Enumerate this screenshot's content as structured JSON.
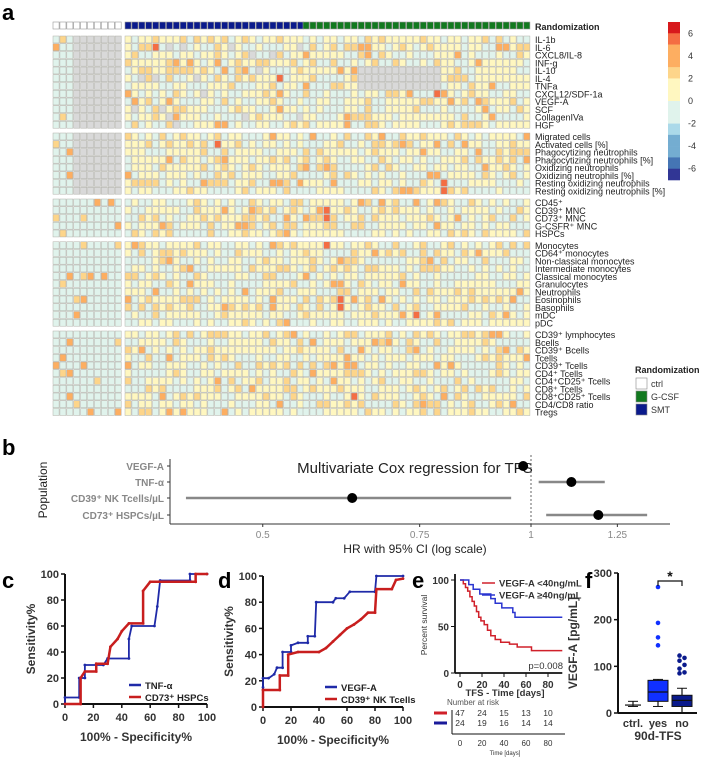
{
  "panels": {
    "a": "a",
    "b": "b",
    "c": "c",
    "d": "d",
    "e": "e",
    "f": "f"
  },
  "chart_data": [
    {
      "panel": "a",
      "type": "heatmap",
      "header_label": "Randomization",
      "column_groups": [
        {
          "name": "ctrl",
          "color": "#ffffff",
          "columns": 10
        },
        {
          "name": "SMT",
          "color": "#0a1a8c",
          "columns": 26
        },
        {
          "name": "G-CSF",
          "color": "#12791f",
          "columns": 33
        }
      ],
      "row_groups": [
        [
          "IL-1b",
          "IL-6",
          "CXCL8/IL-8",
          "INF-g",
          "IL-10",
          "IL-4",
          "TNFa",
          "CXCL12/SDF-1a",
          "VEGF-A",
          "SCF",
          "CollagenIVa",
          "HGF"
        ],
        [
          "Migrated cells",
          "Activated cells [%]",
          "Phagocytizing neutrophils",
          "Phagocytizing neutrophils [%]",
          "Oxidizing neutrophils",
          "Oxidizing neutrophils [%]",
          "Resting oxidizing neutrophils",
          "Resting oxidizing neutrophils [%]"
        ],
        [
          "CD45⁺",
          "CD39⁺ MNC",
          "CD73⁺ MNC",
          "G-CSFR⁺ MNC",
          "HSPCs"
        ],
        [
          "Monocytes",
          "CD64⁺ monocytes",
          "Non-classical monocytes",
          "Intermediate monocytes",
          "Classical monocytes",
          "Granulocytes",
          "Neutrophils",
          "Eosinophils",
          "Basophils",
          "mDC",
          "pDC"
        ],
        [
          "CD39⁺ lymphocytes",
          "Bcells",
          "CD39⁺ Bcells",
          "Tcells",
          "CD39⁺ Tcells",
          "CD4⁺ Tcells",
          "CD4⁺CD25⁺ Tcells",
          "CD8⁺ Tcells",
          "CD8⁺CD25⁺ Tcells",
          "CD4/CD8 ratio",
          "Tregs"
        ]
      ],
      "highlights": [
        {
          "row": "IL-6",
          "group": "SMT",
          "column": 5,
          "value": 6
        },
        {
          "row": "INF-g",
          "group": "SMT",
          "column": 8,
          "value": 4
        },
        {
          "row": "IL-4",
          "group": "SMT",
          "column": 23,
          "value": 6
        },
        {
          "row": "CXCL12/SDF-1a",
          "group": "G-CSF",
          "column": 20,
          "value": 6
        },
        {
          "row": "Activated cells [%]",
          "group": "SMT",
          "column": 14,
          "value": 6
        },
        {
          "row": "Resting oxidizing neutrophils",
          "group": "G-CSF",
          "column": 21,
          "value": 6
        },
        {
          "row": "Resting oxidizing neutrophils [%]",
          "group": "G-CSF",
          "column": 21,
          "value": 6
        },
        {
          "row": "CD39⁺ MNC",
          "group": "G-CSF",
          "column": 4,
          "value": 6
        },
        {
          "row": "CD73⁺ MNC",
          "group": "G-CSF",
          "column": 4,
          "value": 6
        },
        {
          "row": "Monocytes",
          "group": "G-CSF",
          "column": 4,
          "value": 6
        },
        {
          "row": "Eosinophils",
          "group": "G-CSF",
          "column": 6,
          "value": 6
        },
        {
          "row": "Basophils",
          "group": "G-CSF",
          "column": 6,
          "value": 6
        },
        {
          "row": "mDC",
          "group": "G-CSF",
          "column": 17,
          "value": 6
        },
        {
          "row": "CD8⁺CD25⁺ Tcells",
          "group": "G-CSF",
          "column": 8,
          "value": 5
        }
      ],
      "colorbar": {
        "range": [
          -7,
          7
        ],
        "ticks": [
          "6",
          "4",
          "2",
          "0",
          "-2",
          "-4",
          "-6"
        ],
        "colors": [
          "#d7191c",
          "#f46d43",
          "#fdae61",
          "#fff7c0",
          "#e0f3ec",
          "#abd9e9",
          "#74add1",
          "#4575b4",
          "#313695"
        ]
      },
      "missing_color": "#d9d9d9",
      "legend": {
        "title": "Randomization",
        "items": [
          {
            "name": "ctrl",
            "color": "#ffffff"
          },
          {
            "name": "G-CSF",
            "color": "#12791f"
          },
          {
            "name": "SMT",
            "color": "#0a1a8c"
          }
        ]
      }
    },
    {
      "panel": "b",
      "type": "scatter",
      "title": "Multivariate Cox regression for TFS",
      "ylabel": "Population",
      "xlabel": "HR with 95% CI (log scale)",
      "xscale": "log",
      "xticks": [
        "0.5",
        "0.75",
        "1",
        "1.25"
      ],
      "reference_line": 1,
      "rows": [
        {
          "label": "VEGF-A",
          "hr": 0.98,
          "ci": [
            0.97,
            0.99
          ]
        },
        {
          "label": "TNF-α",
          "hr": 1.11,
          "ci": [
            1.02,
            1.21
          ]
        },
        {
          "label": "CD39⁺ NK Tcells/µL",
          "hr": 0.63,
          "ci": [
            0.41,
            0.95
          ]
        },
        {
          "label": "CD73⁺ HSPCs/µL",
          "hr": 1.19,
          "ci": [
            1.04,
            1.35
          ]
        }
      ]
    },
    {
      "panel": "c",
      "type": "line",
      "xlabel": "100% - Specificity%",
      "ylabel": "Sensitivity%",
      "xlim": [
        0,
        100
      ],
      "ylim": [
        0,
        100
      ],
      "ticks": [
        "0",
        "20",
        "40",
        "60",
        "80",
        "100"
      ],
      "series": [
        {
          "name": "TNF-α",
          "color": "#1f2aa8",
          "points": [
            [
              0,
              0
            ],
            [
              0,
              5
            ],
            [
              10,
              5
            ],
            [
              10,
              20
            ],
            [
              14,
              20
            ],
            [
              14,
              30
            ],
            [
              27,
              30
            ],
            [
              30,
              35
            ],
            [
              45,
              35
            ],
            [
              45,
              50
            ],
            [
              47,
              60
            ],
            [
              63,
              60
            ],
            [
              65,
              75
            ],
            [
              67,
              95
            ],
            [
              88,
              95
            ],
            [
              88,
              100
            ],
            [
              100,
              100
            ]
          ]
        },
        {
          "name": "CD73⁺ HSPCs",
          "color": "#c81e1e",
          "points": [
            [
              0,
              0
            ],
            [
              11,
              0
            ],
            [
              11,
              20
            ],
            [
              14,
              25
            ],
            [
              22,
              25
            ],
            [
              22,
              31
            ],
            [
              30,
              31
            ],
            [
              32,
              44
            ],
            [
              37,
              50
            ],
            [
              40,
              56
            ],
            [
              45,
              62
            ],
            [
              55,
              62
            ],
            [
              55,
              87
            ],
            [
              60,
              94
            ],
            [
              92,
              94
            ],
            [
              92,
              100
            ],
            [
              100,
              100
            ]
          ]
        }
      ]
    },
    {
      "panel": "d",
      "type": "line",
      "xlabel": "100% - Specificity%",
      "ylabel": "Sensitivity%",
      "xlim": [
        0,
        100
      ],
      "ylim": [
        0,
        100
      ],
      "ticks": [
        "0",
        "20",
        "40",
        "60",
        "80",
        "100"
      ],
      "series": [
        {
          "name": "VEGF-A",
          "color": "#1f2aa8",
          "points": [
            [
              0,
              15
            ],
            [
              0,
              22
            ],
            [
              4,
              22
            ],
            [
              8,
              25
            ],
            [
              10,
              30
            ],
            [
              14,
              30
            ],
            [
              14,
              42
            ],
            [
              20,
              42
            ],
            [
              20,
              47
            ],
            [
              25,
              49
            ],
            [
              32,
              49
            ],
            [
              32,
              54
            ],
            [
              37,
              54
            ],
            [
              38,
              80
            ],
            [
              50,
              80
            ],
            [
              52,
              83
            ],
            [
              58,
              83
            ],
            [
              62,
              88
            ],
            [
              80,
              88
            ],
            [
              81,
              100
            ],
            [
              100,
              100
            ]
          ]
        },
        {
          "name": "CD39⁺ NK Tcells",
          "color": "#c81e1e",
          "points": [
            [
              0,
              0
            ],
            [
              0,
              13
            ],
            [
              12,
              13
            ],
            [
              12,
              24
            ],
            [
              18,
              24
            ],
            [
              18,
              40
            ],
            [
              25,
              42
            ],
            [
              40,
              42
            ],
            [
              45,
              45
            ],
            [
              50,
              50
            ],
            [
              55,
              55
            ],
            [
              60,
              60
            ],
            [
              65,
              63
            ],
            [
              70,
              67
            ],
            [
              75,
              72
            ],
            [
              80,
              72
            ],
            [
              81,
              90
            ],
            [
              92,
              90
            ],
            [
              95,
              97
            ],
            [
              100,
              98
            ]
          ]
        }
      ]
    },
    {
      "panel": "e",
      "type": "line",
      "xlabel": "TFS - Time [days]",
      "ylabel": "Percent survival",
      "xlim": [
        0,
        93
      ],
      "ylim": [
        0,
        100
      ],
      "xticks": [
        "0",
        "20",
        "40",
        "60",
        "80"
      ],
      "yticks": [
        "0",
        "50",
        "100"
      ],
      "annotation": "p=0.008",
      "series": [
        {
          "name": "VEGF-A <40ng/mL",
          "color": "#d0202a",
          "points": [
            [
              0,
              100
            ],
            [
              3,
              96
            ],
            [
              5,
              92
            ],
            [
              7,
              88
            ],
            [
              9,
              82
            ],
            [
              11,
              77
            ],
            [
              13,
              72
            ],
            [
              15,
              66
            ],
            [
              17,
              60
            ],
            [
              19,
              56
            ],
            [
              22,
              52
            ],
            [
              25,
              46
            ],
            [
              28,
              40
            ],
            [
              32,
              36
            ],
            [
              37,
              33
            ],
            [
              45,
              31
            ],
            [
              52,
              28
            ],
            [
              65,
              24
            ],
            [
              93,
              24
            ]
          ]
        },
        {
          "name": "VEGF-A ≥40ng/mL",
          "color": "#2a35d0",
          "points": [
            [
              0,
              100
            ],
            [
              5,
              100
            ],
            [
              8,
              95
            ],
            [
              12,
              90
            ],
            [
              18,
              85
            ],
            [
              28,
              80
            ],
            [
              32,
              75
            ],
            [
              38,
              70
            ],
            [
              48,
              65
            ],
            [
              50,
              60
            ],
            [
              93,
              60
            ]
          ]
        }
      ],
      "risk_table": {
        "title": "Number at risk",
        "xlabel": "Time [days]",
        "times": [
          "0",
          "20",
          "40",
          "60",
          "80"
        ],
        "rows": [
          {
            "color": "#d0202a",
            "values": [
              "47",
              "24",
              "15",
              "13",
              "10"
            ]
          },
          {
            "color": "#1a1a9a",
            "values": [
              "24",
              "19",
              "16",
              "14",
              "14"
            ]
          }
        ]
      }
    },
    {
      "panel": "f",
      "type": "box",
      "ylabel": "VEGF-A [pg/mL]",
      "xlabel": "90d-TFS",
      "ylim": [
        0,
        300
      ],
      "yticks": [
        "0",
        "100",
        "200",
        "300"
      ],
      "categories": [
        "ctrl.",
        "yes",
        "no"
      ],
      "significance": {
        "between": [
          "yes",
          "no"
        ],
        "label": "*"
      },
      "boxes": [
        {
          "category": "ctrl.",
          "color": "#ffffff",
          "q1": 17,
          "median": 17,
          "q3": 17,
          "whisker": [
            14,
            25
          ],
          "outliers": []
        },
        {
          "category": "yes",
          "color": "#1030ff",
          "q1": 25,
          "median": 45,
          "q3": 70,
          "whisker": [
            14,
            72
          ],
          "outliers": [
            145,
            162,
            193,
            270
          ]
        },
        {
          "category": "no",
          "color": "#0a1a8c",
          "q1": 14,
          "median": 27,
          "q3": 38,
          "whisker": [
            0,
            53
          ],
          "outliers": [
            85,
            87,
            95,
            103,
            112,
            118,
            123
          ]
        }
      ]
    }
  ]
}
